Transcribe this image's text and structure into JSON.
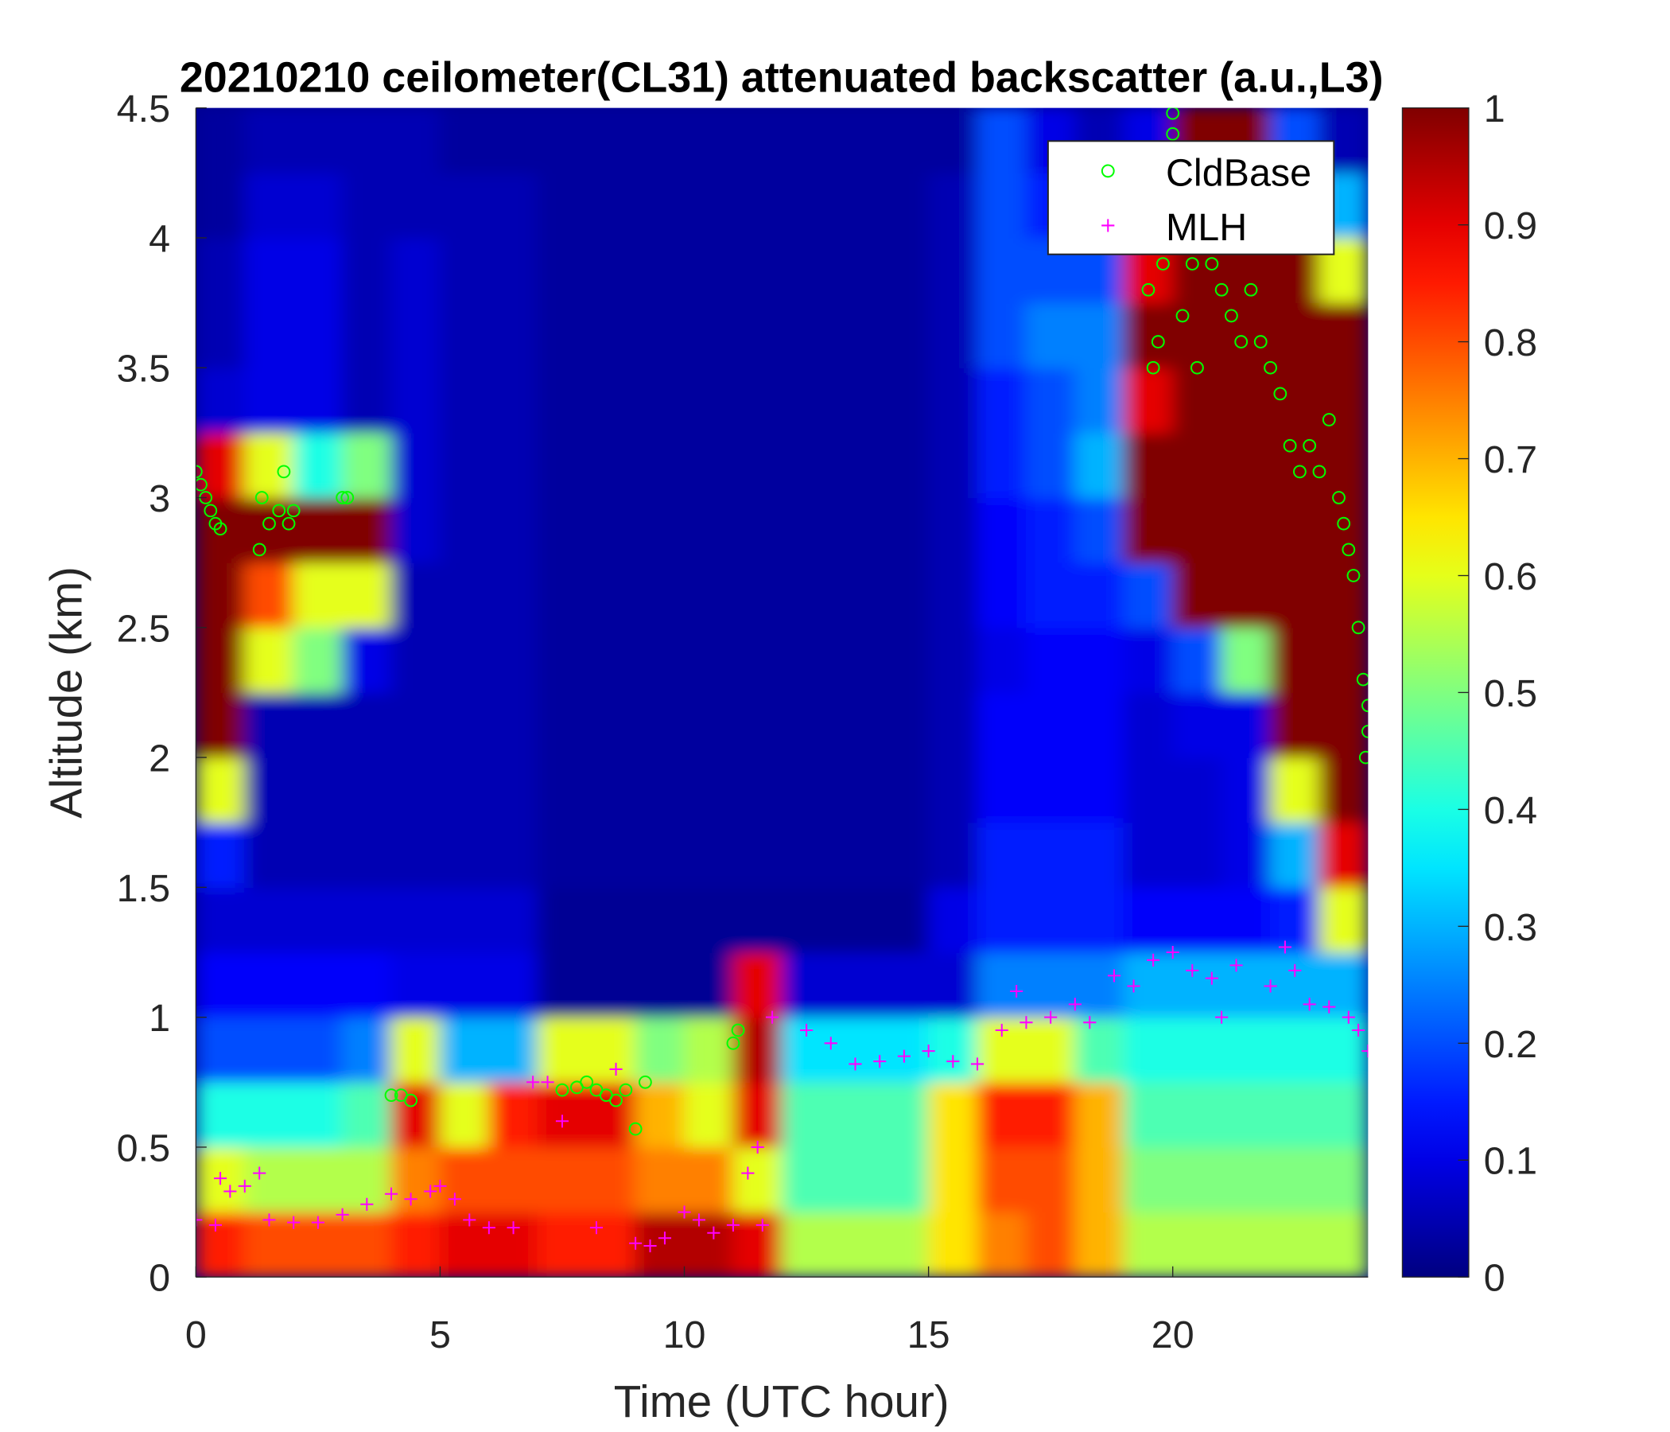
{
  "chart_data": {
    "type": "heatmap",
    "title": "20210210 ceilometer(CL31) attenuated backscatter (a.u.,L3)",
    "xlabel": "Time (UTC hour)",
    "ylabel": "Altitude (km)",
    "xlim": [
      0,
      24
    ],
    "ylim": [
      0,
      4.5
    ],
    "xticks": [
      "0",
      "5",
      "10",
      "15",
      "20"
    ],
    "yticks": [
      "0",
      "0.5",
      "1",
      "1.5",
      "2",
      "2.5",
      "3",
      "3.5",
      "4",
      "4.5"
    ],
    "colorbar": {
      "colormap": "jet",
      "range": [
        0,
        1
      ],
      "ticks": [
        "0",
        "0.1",
        "0.2",
        "0.3",
        "0.4",
        "0.5",
        "0.6",
        "0.7",
        "0.8",
        "0.9",
        "1"
      ]
    },
    "grid": false,
    "legend_position": "top-right",
    "heatmap": {
      "x_bin_hours": 1,
      "y_bin_km": 0.25,
      "rows_bottom_to_top": [
        [
          0.85,
          0.8,
          0.8,
          0.8,
          0.85,
          0.9,
          0.9,
          0.85,
          0.85,
          0.95,
          0.95,
          0.9,
          0.55,
          0.55,
          0.55,
          0.65,
          0.75,
          0.8,
          0.7,
          0.55,
          0.55,
          0.55,
          0.55,
          0.55
        ],
        [
          0.6,
          0.55,
          0.55,
          0.55,
          0.75,
          0.8,
          0.8,
          0.8,
          0.8,
          0.75,
          0.75,
          0.6,
          0.45,
          0.45,
          0.45,
          0.65,
          0.8,
          0.8,
          0.7,
          0.5,
          0.5,
          0.5,
          0.5,
          0.5
        ],
        [
          0.4,
          0.4,
          0.4,
          0.45,
          0.9,
          0.6,
          0.85,
          0.9,
          0.9,
          0.7,
          0.6,
          0.9,
          0.45,
          0.45,
          0.45,
          0.65,
          0.85,
          0.85,
          0.7,
          0.45,
          0.45,
          0.45,
          0.45,
          0.45
        ],
        [
          0.2,
          0.2,
          0.2,
          0.25,
          0.6,
          0.3,
          0.3,
          0.6,
          0.6,
          0.5,
          0.55,
          0.95,
          0.35,
          0.35,
          0.35,
          0.4,
          0.6,
          0.6,
          0.45,
          0.4,
          0.4,
          0.4,
          0.4,
          0.4
        ],
        [
          0.12,
          0.12,
          0.12,
          0.12,
          0.1,
          0.1,
          0.1,
          0.02,
          0.02,
          0.02,
          0.02,
          0.9,
          0.08,
          0.08,
          0.08,
          0.08,
          0.25,
          0.25,
          0.25,
          0.3,
          0.3,
          0.3,
          0.3,
          0.3
        ],
        [
          0.08,
          0.08,
          0.08,
          0.08,
          0.08,
          0.08,
          0.08,
          0.02,
          0.02,
          0.02,
          0.02,
          0.02,
          0.02,
          0.02,
          0.02,
          0.1,
          0.15,
          0.15,
          0.15,
          0.12,
          0.12,
          0.12,
          0.15,
          0.6
        ],
        [
          0.15,
          0.05,
          0.05,
          0.05,
          0.05,
          0.05,
          0.05,
          0.03,
          0.03,
          0.03,
          0.03,
          0.03,
          0.03,
          0.03,
          0.03,
          0.05,
          0.15,
          0.15,
          0.15,
          0.08,
          0.08,
          0.1,
          0.3,
          0.9
        ],
        [
          0.6,
          0.05,
          0.05,
          0.05,
          0.05,
          0.05,
          0.05,
          0.03,
          0.03,
          0.03,
          0.03,
          0.03,
          0.03,
          0.03,
          0.03,
          0.05,
          0.12,
          0.12,
          0.12,
          0.08,
          0.08,
          0.1,
          0.6,
          1
        ],
        [
          1,
          0.05,
          0.05,
          0.05,
          0.05,
          0.05,
          0.05,
          0.03,
          0.03,
          0.03,
          0.03,
          0.03,
          0.03,
          0.03,
          0.03,
          0.05,
          0.12,
          0.12,
          0.12,
          0.08,
          0.1,
          0.1,
          1,
          1
        ],
        [
          1,
          0.6,
          0.5,
          0.1,
          0.05,
          0.05,
          0.05,
          0.03,
          0.03,
          0.03,
          0.03,
          0.03,
          0.03,
          0.03,
          0.03,
          0.05,
          0.1,
          0.12,
          0.12,
          0.1,
          0.2,
          0.5,
          1,
          1
        ],
        [
          1,
          0.8,
          0.6,
          0.6,
          0.05,
          0.05,
          0.05,
          0.03,
          0.03,
          0.03,
          0.03,
          0.03,
          0.03,
          0.03,
          0.03,
          0.05,
          0.12,
          0.15,
          0.15,
          0.2,
          1,
          1,
          1,
          1
        ],
        [
          1,
          1,
          1,
          1,
          0.08,
          0.05,
          0.05,
          0.03,
          0.03,
          0.03,
          0.03,
          0.03,
          0.03,
          0.03,
          0.03,
          0.05,
          0.12,
          0.15,
          0.2,
          1,
          1,
          1,
          1,
          1
        ],
        [
          0.9,
          0.6,
          0.4,
          0.5,
          0.08,
          0.05,
          0.05,
          0.03,
          0.03,
          0.03,
          0.03,
          0.03,
          0.03,
          0.03,
          0.03,
          0.05,
          0.15,
          0.2,
          0.3,
          1,
          1,
          1,
          1,
          1
        ],
        [
          0.08,
          0.1,
          0.1,
          0.05,
          0.08,
          0.05,
          0.05,
          0.03,
          0.03,
          0.03,
          0.03,
          0.03,
          0.03,
          0.03,
          0.03,
          0.05,
          0.15,
          0.2,
          0.25,
          0.9,
          1,
          1,
          1,
          1
        ],
        [
          0.05,
          0.1,
          0.1,
          0.05,
          0.08,
          0.05,
          0.05,
          0.03,
          0.03,
          0.03,
          0.03,
          0.03,
          0.03,
          0.03,
          0.03,
          0.05,
          0.2,
          0.25,
          0.25,
          1,
          1,
          1,
          1,
          1
        ],
        [
          0.05,
          0.1,
          0.1,
          0.05,
          0.08,
          0.05,
          0.05,
          0.03,
          0.03,
          0.03,
          0.03,
          0.03,
          0.03,
          0.03,
          0.03,
          0.05,
          0.2,
          0.2,
          0.2,
          0.9,
          1,
          1,
          1,
          0.6
        ],
        [
          0.03,
          0.08,
          0.08,
          0.05,
          0.05,
          0.05,
          0.05,
          0.03,
          0.03,
          0.03,
          0.03,
          0.03,
          0.03,
          0.03,
          0.03,
          0.05,
          0.2,
          0.15,
          0.1,
          0.3,
          1,
          1,
          1,
          0.3
        ],
        [
          0.03,
          0.05,
          0.05,
          0.05,
          0.05,
          0.03,
          0.03,
          0.03,
          0.03,
          0.03,
          0.03,
          0.03,
          0.03,
          0.03,
          0.03,
          0.03,
          0.2,
          0.1,
          0.05,
          0.1,
          1,
          1,
          0.2,
          0.05
        ]
      ]
    },
    "series": [
      {
        "name": "CldBase",
        "marker": "circle",
        "color": "#00ff00",
        "points": [
          [
            0.0,
            3.1
          ],
          [
            0.1,
            3.05
          ],
          [
            0.2,
            3.0
          ],
          [
            0.3,
            2.95
          ],
          [
            0.4,
            2.9
          ],
          [
            0.5,
            2.88
          ],
          [
            1.3,
            2.8
          ],
          [
            1.35,
            3.0
          ],
          [
            1.5,
            2.9
          ],
          [
            1.7,
            2.95
          ],
          [
            1.8,
            3.1
          ],
          [
            1.9,
            2.9
          ],
          [
            2.0,
            2.95
          ],
          [
            3.0,
            3.0
          ],
          [
            3.1,
            3.0
          ],
          [
            4.0,
            0.7
          ],
          [
            4.2,
            0.7
          ],
          [
            4.4,
            0.68
          ],
          [
            7.5,
            0.72
          ],
          [
            7.8,
            0.73
          ],
          [
            8.0,
            0.75
          ],
          [
            8.2,
            0.72
          ],
          [
            8.4,
            0.7
          ],
          [
            8.6,
            0.68
          ],
          [
            8.8,
            0.72
          ],
          [
            9.0,
            0.57
          ],
          [
            9.2,
            0.75
          ],
          [
            11.0,
            0.9
          ],
          [
            11.1,
            0.95
          ],
          [
            19.5,
            3.8
          ],
          [
            19.6,
            3.5
          ],
          [
            19.7,
            3.6
          ],
          [
            19.8,
            3.9
          ],
          [
            20.0,
            4.4
          ],
          [
            20.0,
            4.48
          ],
          [
            20.2,
            3.7
          ],
          [
            20.4,
            3.9
          ],
          [
            20.5,
            3.5
          ],
          [
            20.8,
            3.9
          ],
          [
            21.0,
            3.8
          ],
          [
            21.2,
            3.7
          ],
          [
            21.4,
            3.6
          ],
          [
            21.6,
            3.8
          ],
          [
            21.8,
            3.6
          ],
          [
            22.0,
            3.5
          ],
          [
            22.2,
            3.4
          ],
          [
            22.4,
            3.2
          ],
          [
            22.6,
            3.1
          ],
          [
            22.8,
            3.2
          ],
          [
            23.0,
            3.1
          ],
          [
            23.2,
            3.3
          ],
          [
            23.4,
            3.0
          ],
          [
            23.5,
            2.9
          ],
          [
            23.6,
            2.8
          ],
          [
            23.7,
            2.7
          ],
          [
            23.8,
            2.5
          ],
          [
            23.9,
            2.3
          ],
          [
            24.0,
            2.2
          ],
          [
            23.95,
            2.0
          ],
          [
            24.0,
            2.1
          ]
        ]
      },
      {
        "name": "MLH",
        "marker": "plus",
        "color": "#ff00ff",
        "points": [
          [
            0,
            0.22
          ],
          [
            0.4,
            0.2
          ],
          [
            0.5,
            0.38
          ],
          [
            0.7,
            0.33
          ],
          [
            1.0,
            0.35
          ],
          [
            1.3,
            0.4
          ],
          [
            1.5,
            0.22
          ],
          [
            2.0,
            0.21
          ],
          [
            2.5,
            0.21
          ],
          [
            3.0,
            0.24
          ],
          [
            3.5,
            0.28
          ],
          [
            4.0,
            0.32
          ],
          [
            4.4,
            0.3
          ],
          [
            4.8,
            0.33
          ],
          [
            5.0,
            0.35
          ],
          [
            5.3,
            0.3
          ],
          [
            5.6,
            0.22
          ],
          [
            6.0,
            0.19
          ],
          [
            6.5,
            0.19
          ],
          [
            6.9,
            0.75
          ],
          [
            7.2,
            0.75
          ],
          [
            7.5,
            0.6
          ],
          [
            8.2,
            0.19
          ],
          [
            8.6,
            0.8
          ],
          [
            9.0,
            0.13
          ],
          [
            9.3,
            0.12
          ],
          [
            9.6,
            0.15
          ],
          [
            10.0,
            0.25
          ],
          [
            10.3,
            0.22
          ],
          [
            10.6,
            0.17
          ],
          [
            11.0,
            0.2
          ],
          [
            11.3,
            0.4
          ],
          [
            11.5,
            0.5
          ],
          [
            11.6,
            0.2
          ],
          [
            11.8,
            1.0
          ],
          [
            12.5,
            0.95
          ],
          [
            13.0,
            0.9
          ],
          [
            13.5,
            0.82
          ],
          [
            14.0,
            0.83
          ],
          [
            14.5,
            0.85
          ],
          [
            15.0,
            0.87
          ],
          [
            15.5,
            0.83
          ],
          [
            16.0,
            0.82
          ],
          [
            16.5,
            0.95
          ],
          [
            16.8,
            1.1
          ],
          [
            17.0,
            0.98
          ],
          [
            17.5,
            1.0
          ],
          [
            18.0,
            1.05
          ],
          [
            18.3,
            0.98
          ],
          [
            18.8,
            1.16
          ],
          [
            19.2,
            1.12
          ],
          [
            19.6,
            1.22
          ],
          [
            20.0,
            1.25
          ],
          [
            20.4,
            1.18
          ],
          [
            20.8,
            1.15
          ],
          [
            21.0,
            1.0
          ],
          [
            21.3,
            1.2
          ],
          [
            22.0,
            1.12
          ],
          [
            22.3,
            1.27
          ],
          [
            22.5,
            1.18
          ],
          [
            22.8,
            1.05
          ],
          [
            23.2,
            1.04
          ],
          [
            23.6,
            1.0
          ],
          [
            23.8,
            0.95
          ],
          [
            24.0,
            0.87
          ]
        ]
      }
    ]
  }
}
